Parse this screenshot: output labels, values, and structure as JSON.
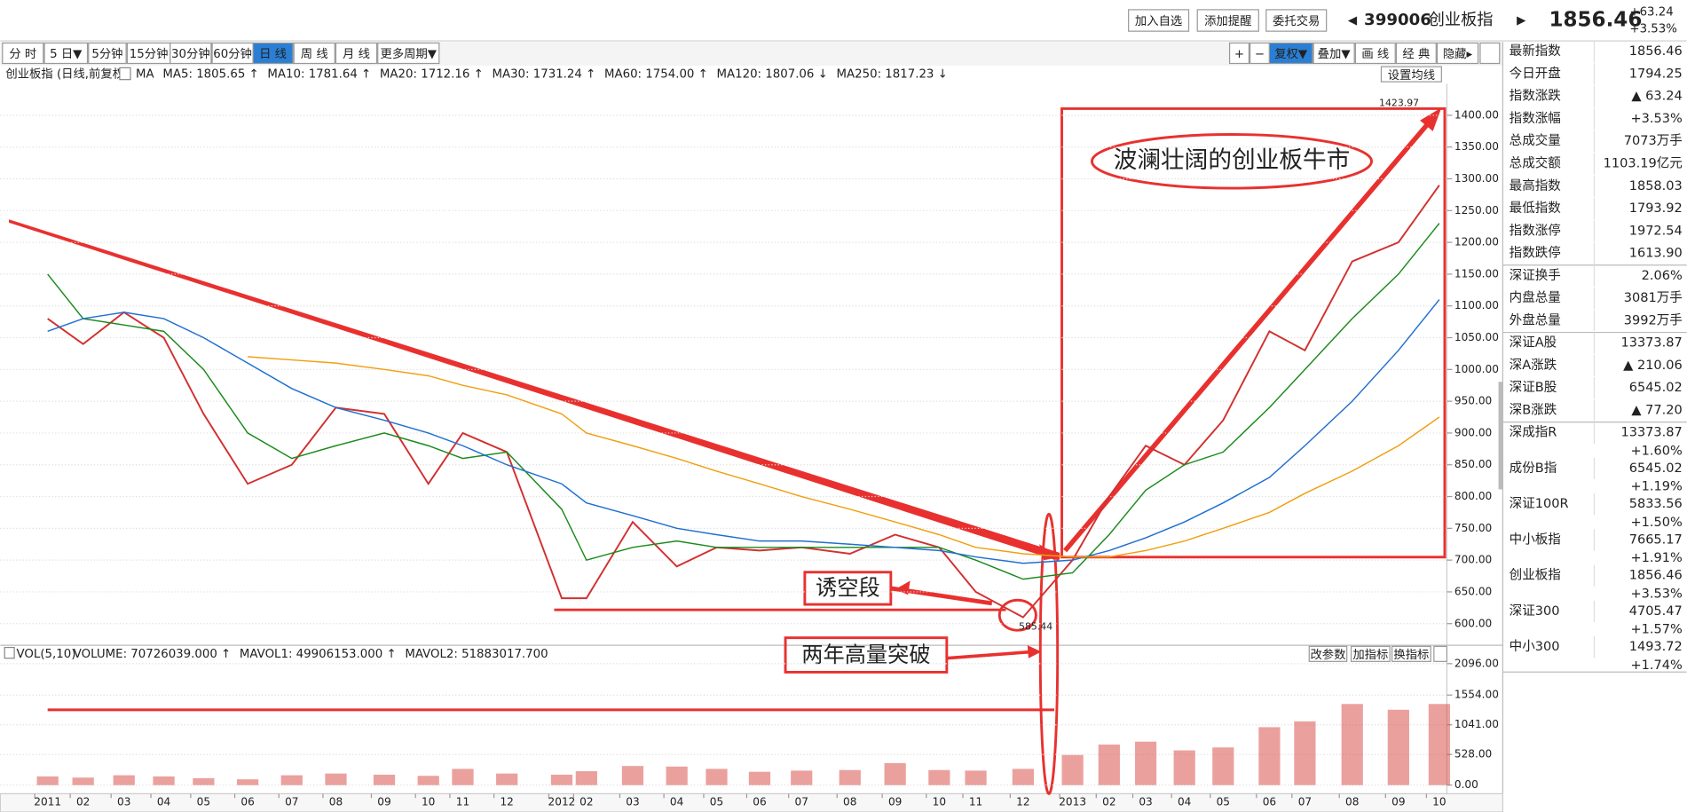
{
  "header": {
    "buttons": [
      "加入自选",
      "添加提醒",
      "委托交易"
    ],
    "code": "399006",
    "name": "创业板指",
    "price": "1856.46",
    "change": "+63.24",
    "change_pct": "+3.53%"
  },
  "toolbar": {
    "periods": [
      "分 时",
      "5 日▼",
      "5分钟",
      "15分钟",
      "30分钟",
      "60分钟",
      "日 线",
      "周 线",
      "月 线",
      "更多周期▼"
    ],
    "active_index": 6,
    "tools": [
      "+",
      "−",
      "复权▼",
      "叠加▼",
      "画 线",
      "经 典",
      "隐藏▸"
    ]
  },
  "chart_data": [
    {
      "type": "line",
      "title": "创业板指 (日线,前复权)",
      "legend_items": [
        {
          "text": "MA",
          "color": "#222"
        },
        {
          "text": "MA5: 1805.65 ↑",
          "color": "#222"
        },
        {
          "text": "MA10: 1781.64 ↑",
          "color": "#e020e0"
        },
        {
          "text": "MA20: 1712.16 ↑",
          "color": "#888"
        },
        {
          "text": "MA30: 1731.24 ↑",
          "color": "#a01818"
        },
        {
          "text": "MA60: 1754.00 ↑",
          "color": "#1a8a1a"
        },
        {
          "text": "MA120: 1807.06 ↓",
          "color": "#1f6fd0"
        },
        {
          "text": "MA250: 1817.23 ↓",
          "color": "#f0a010"
        }
      ],
      "settings_button": "设置均线",
      "series": [
        {
          "name": "收盘",
          "color": "#d23030",
          "values": [
            1080,
            1040,
            1090,
            1050,
            930,
            820,
            850,
            940,
            930,
            820,
            900,
            870,
            640,
            640,
            760,
            690,
            720,
            715,
            720,
            710,
            740,
            720,
            650,
            610,
            700,
            800,
            880,
            850,
            920,
            1060,
            1030,
            1170,
            1200,
            1290
          ]
        },
        {
          "name": "MA60",
          "color": "#1a8a1a",
          "values": [
            1150,
            1080,
            1070,
            1060,
            1000,
            900,
            860,
            880,
            900,
            880,
            860,
            870,
            780,
            700,
            720,
            730,
            720,
            720,
            720,
            720,
            720,
            720,
            700,
            670,
            680,
            740,
            810,
            850,
            870,
            940,
            1000,
            1080,
            1150,
            1230
          ]
        },
        {
          "name": "MA120",
          "color": "#1f6fd0",
          "values": [
            1060,
            1080,
            1090,
            1080,
            1050,
            1010,
            970,
            940,
            920,
            900,
            880,
            850,
            820,
            790,
            770,
            750,
            740,
            730,
            730,
            725,
            720,
            715,
            705,
            695,
            700,
            715,
            735,
            760,
            790,
            830,
            880,
            950,
            1030,
            1110
          ]
        },
        {
          "name": "MA250",
          "color": "#f0a010",
          "values": [
            null,
            null,
            null,
            null,
            null,
            1020,
            1015,
            1010,
            1000,
            990,
            975,
            960,
            930,
            900,
            880,
            860,
            840,
            820,
            800,
            780,
            760,
            740,
            720,
            710,
            705,
            705,
            715,
            730,
            750,
            775,
            805,
            840,
            880,
            925
          ]
        }
      ],
      "ylim": [
        571,
        1446
      ],
      "yticks": [
        {
          "value": 600,
          "label": "600.00"
        },
        {
          "value": 650,
          "label": "650.00"
        },
        {
          "value": 700,
          "label": "700.00"
        },
        {
          "value": 750,
          "label": "750.00"
        },
        {
          "value": 800,
          "label": "800.00"
        },
        {
          "value": 850,
          "label": "850.00"
        },
        {
          "value": 900,
          "label": "900.00"
        },
        {
          "value": 950,
          "label": "950.00"
        },
        {
          "value": 1000,
          "label": "1000.00"
        },
        {
          "value": 1050,
          "label": "1050.00"
        },
        {
          "value": 1100,
          "label": "1100.00"
        },
        {
          "value": 1150,
          "label": "1150.00"
        },
        {
          "value": 1200,
          "label": "1200.00"
        },
        {
          "value": 1250,
          "label": "1250.00"
        },
        {
          "value": 1300,
          "label": "1300.00"
        },
        {
          "value": 1350,
          "label": "1350.00"
        },
        {
          "value": 1400,
          "label": "1400.00"
        }
      ],
      "grid": true,
      "high_label": "1423.97",
      "low_label": "585.44",
      "annotations": [
        "波澜壮阔的创业板牛市",
        "诱空段",
        "两年高量突破"
      ]
    },
    {
      "type": "bar",
      "title": "VOL(5,10)",
      "legend_items": [
        {
          "text": "VOLUME: 70726039.000 ↑",
          "color": "#222"
        },
        {
          "text": "MAVOL1: 49906153.000 ↑",
          "color": "#e020e0"
        },
        {
          "text": "MAVOL2: 51883017.700",
          "color": "#888"
        }
      ],
      "buttons": [
        "改参数",
        "加指标",
        "换指标"
      ],
      "categories": [
        "2011",
        "02",
        "03",
        "04",
        "05",
        "06",
        "07",
        "08",
        "09",
        "10",
        "11",
        "12",
        "2012",
        "02",
        "03",
        "04",
        "05",
        "06",
        "07",
        "08",
        "09",
        "10",
        "11",
        "12",
        "2013",
        "02",
        "03",
        "04",
        "05",
        "06",
        "07",
        "08",
        "09",
        "10"
      ],
      "series": [
        {
          "name": "VOLUME",
          "color": "#d9534f",
          "values": [
            150,
            130,
            170,
            150,
            120,
            100,
            170,
            200,
            180,
            160,
            280,
            200,
            180,
            240,
            330,
            320,
            280,
            230,
            250,
            260,
            380,
            260,
            250,
            280,
            520,
            700,
            750,
            600,
            650,
            1000,
            1100,
            1400,
            1300,
            1400
          ]
        }
      ],
      "ylim": [
        0,
        2190
      ],
      "yticks": [
        {
          "value": 0,
          "label": "0.00"
        },
        {
          "value": 528,
          "label": "528.00"
        },
        {
          "value": 1041,
          "label": "1041.00"
        },
        {
          "value": 1554,
          "label": "1554.00"
        },
        {
          "value": 2096,
          "label": "2096.00"
        }
      ],
      "grid": true
    }
  ],
  "side_panel": {
    "sections": [
      [
        {
          "label": "最新指数",
          "value": "1856.46",
          "color": "#e02020"
        },
        {
          "label": "今日开盘",
          "value": "1794.25",
          "color": "#e02020"
        },
        {
          "label": "指数涨跌",
          "value": "▲ 63.24",
          "color": "#e02020"
        },
        {
          "label": "指数涨幅",
          "value": "+3.53%",
          "color": "#e02020"
        },
        {
          "label": "总成交量",
          "value": "7073万手",
          "color": "#222"
        },
        {
          "label": "总成交额",
          "value": "1103.19亿元",
          "color": "#1f6fd0"
        },
        {
          "label": "最高指数",
          "value": "1858.03",
          "color": "#e02020"
        },
        {
          "label": "最低指数",
          "value": "1793.92",
          "color": "#e02020"
        },
        {
          "label": "指数涨停",
          "value": "1972.54",
          "color": "#e02020"
        },
        {
          "label": "指数跌停",
          "value": "1613.90",
          "color": "#1a8a1a"
        }
      ],
      [
        {
          "label": "深证换手",
          "value": "2.06%",
          "color": "#222"
        },
        {
          "label": "内盘总量",
          "value": "3081万手",
          "color": "#1a8a1a"
        },
        {
          "label": "外盘总量",
          "value": "3992万手",
          "color": "#e02020"
        }
      ],
      [
        {
          "label": "深证A股",
          "value": "13373.87",
          "color": "#e02020"
        },
        {
          "label": "深A涨跌",
          "value": "▲ 210.06",
          "color": "#e02020"
        },
        {
          "label": "深证B股",
          "value": "6545.02",
          "color": "#e02020"
        },
        {
          "label": "深B涨跌",
          "value": "▲ 77.20",
          "color": "#e02020"
        }
      ],
      [
        {
          "label": "深成指R",
          "value": "13373.87",
          "change": "+1.60%",
          "color": "#e02020"
        },
        {
          "label": "成份B指",
          "value": "6545.02",
          "change": "+1.19%",
          "color": "#e02020"
        },
        {
          "label": "深证100R",
          "value": "5833.56",
          "change": "+1.50%",
          "color": "#e02020"
        },
        {
          "label": "中小板指",
          "value": "7665.17",
          "change": "+1.91%",
          "color": "#e02020"
        },
        {
          "label": "创业板指",
          "value": "1856.46",
          "change": "+3.53%",
          "color": "#e02020"
        },
        {
          "label": "深证300",
          "value": "4705.47",
          "change": "+1.57%",
          "color": "#e02020"
        },
        {
          "label": "中小300",
          "value": "1493.72",
          "change": "+1.74%",
          "color": "#e02020"
        }
      ]
    ]
  }
}
